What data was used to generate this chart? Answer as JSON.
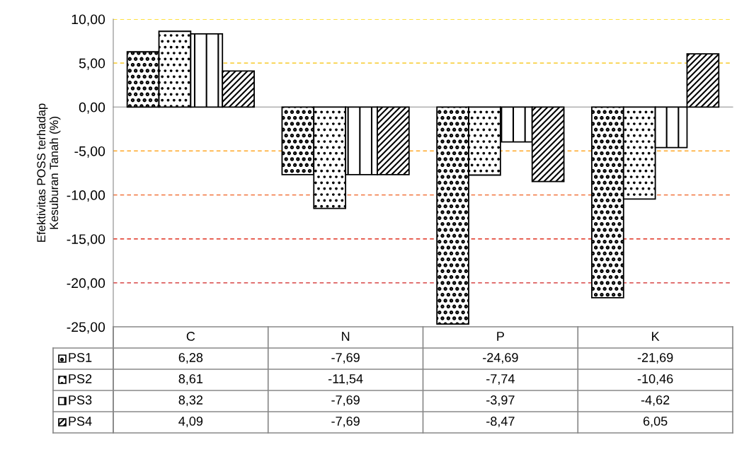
{
  "chart_data": {
    "type": "bar",
    "ylabel": "Efektivitas POSS terhadap\nKesuburan Tanah (%)",
    "categories": [
      "C",
      "N",
      "P",
      "K"
    ],
    "series": [
      {
        "name": "PS1",
        "color": "#000000",
        "values": [
          6.28,
          -7.69,
          -24.69,
          -21.69
        ],
        "value_labels": [
          "6,28",
          "-7,69",
          "-24,69",
          "-21,69"
        ]
      },
      {
        "name": "PS2",
        "color": "#000000",
        "values": [
          8.61,
          -11.54,
          -7.74,
          -10.46
        ],
        "value_labels": [
          "8,61",
          "-11,54",
          "-7,74",
          "-10,46"
        ]
      },
      {
        "name": "PS3",
        "color": "#000000",
        "values": [
          8.32,
          -7.69,
          -3.97,
          -4.62
        ],
        "value_labels": [
          "8,32",
          "-7,69",
          "-3,97",
          "-4,62"
        ]
      },
      {
        "name": "PS4",
        "color": "#000000",
        "values": [
          4.09,
          -7.69,
          -8.47,
          6.05
        ],
        "value_labels": [
          "4,09",
          "-7,69",
          "-8,47",
          "6,05"
        ]
      }
    ],
    "ylim": [
      -25,
      10
    ],
    "yticks": [
      {
        "value": -25,
        "label": "-25,00"
      },
      {
        "value": -20,
        "label": "-20,00"
      },
      {
        "value": -15,
        "label": "-15,00"
      },
      {
        "value": -10,
        "label": "-10,00"
      },
      {
        "value": -5,
        "label": "-5,00"
      },
      {
        "value": 0,
        "label": "0,00"
      },
      {
        "value": 5,
        "label": "5,00"
      },
      {
        "value": 10,
        "label": "10,00"
      }
    ],
    "ref_lines": [
      {
        "axis": "y",
        "value": 10,
        "color": "#ffd700",
        "line_style": "dashed"
      },
      {
        "axis": "y",
        "value": 5,
        "color": "#f5c000",
        "line_style": "dashed"
      },
      {
        "axis": "y",
        "value": -5,
        "color": "#ff9900",
        "line_style": "dashed"
      },
      {
        "axis": "y",
        "value": -10,
        "color": "#f06020",
        "line_style": "dashed"
      },
      {
        "axis": "y",
        "value": -15,
        "color": "#e03020",
        "line_style": "dashed"
      },
      {
        "axis": "y",
        "value": -20,
        "color": "#d02020",
        "line_style": "dashed"
      }
    ],
    "legend": "bottom",
    "grid": false
  }
}
